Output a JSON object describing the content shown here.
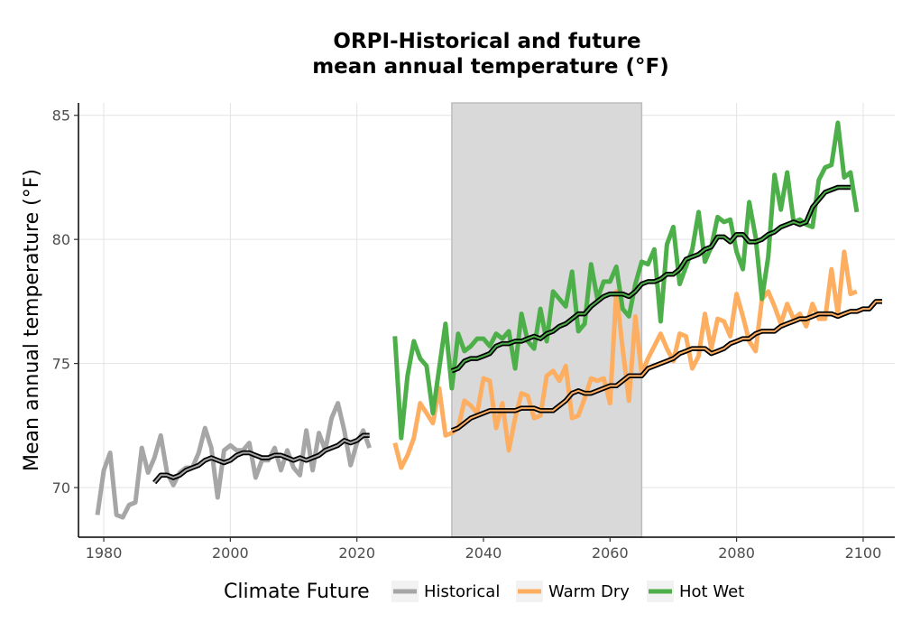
{
  "chart_data": {
    "type": "line",
    "title": [
      "ORPI-Historical and future",
      "mean annual temperature (°F)"
    ],
    "xlabel": "",
    "ylabel": "Mean annual temperature (°F)",
    "xlim": [
      1976,
      2105
    ],
    "ylim": [
      68,
      85.5
    ],
    "xticks": [
      1980,
      2000,
      2020,
      2040,
      2060,
      2080,
      2100
    ],
    "yticks": [
      70,
      75,
      80,
      85
    ],
    "grid": true,
    "shaded_period": [
      2035,
      2065
    ],
    "legend": {
      "title": "Climate Future",
      "position": "bottom"
    },
    "series": [
      {
        "name": "Historical",
        "color": "#a6a6a6",
        "x": [
          1979,
          1980,
          1981,
          1982,
          1983,
          1984,
          1985,
          1986,
          1987,
          1988,
          1989,
          1990,
          1991,
          1992,
          1993,
          1994,
          1995,
          1996,
          1997,
          1998,
          1999,
          2000,
          2001,
          2002,
          2003,
          2004,
          2005,
          2006,
          2007,
          2008,
          2009,
          2010,
          2011,
          2012,
          2013,
          2014,
          2015,
          2016,
          2017,
          2018,
          2019,
          2020,
          2021,
          2022
        ],
        "values": [
          68.9,
          70.7,
          71.4,
          68.9,
          68.8,
          69.3,
          69.4,
          71.6,
          70.6,
          71.2,
          72.1,
          70.6,
          70.1,
          70.6,
          70.8,
          70.8,
          71.4,
          72.4,
          71.6,
          69.6,
          71.5,
          71.7,
          71.5,
          71.5,
          71.8,
          70.4,
          71.1,
          71.1,
          71.6,
          70.7,
          71.5,
          70.8,
          70.5,
          72.3,
          70.7,
          72.2,
          71.5,
          72.8,
          73.4,
          72.3,
          70.9,
          71.8,
          72.3,
          71.6
        ]
      },
      {
        "name": "Warm Dry",
        "color": "#fdae61",
        "x": [
          2026,
          2027,
          2028,
          2029,
          2030,
          2031,
          2032,
          2033,
          2034,
          2035,
          2036,
          2037,
          2038,
          2039,
          2040,
          2041,
          2042,
          2043,
          2044,
          2045,
          2046,
          2047,
          2048,
          2049,
          2050,
          2051,
          2052,
          2053,
          2054,
          2055,
          2056,
          2057,
          2058,
          2059,
          2060,
          2061,
          2062,
          2063,
          2064,
          2065,
          2066,
          2067,
          2068,
          2069,
          2070,
          2071,
          2072,
          2073,
          2074,
          2075,
          2076,
          2077,
          2078,
          2079,
          2080,
          2081,
          2082,
          2083,
          2084,
          2085,
          2086,
          2087,
          2088,
          2089,
          2090,
          2091,
          2092,
          2093,
          2094,
          2095,
          2096,
          2097,
          2098,
          2099
        ],
        "values": [
          71.8,
          70.8,
          71.3,
          72.0,
          73.4,
          73.0,
          72.6,
          74.0,
          72.1,
          72.2,
          72.4,
          73.5,
          73.3,
          73.0,
          74.4,
          74.3,
          72.4,
          73.4,
          71.5,
          72.8,
          73.8,
          73.7,
          72.8,
          72.9,
          74.5,
          74.7,
          74.3,
          74.9,
          72.8,
          72.9,
          73.6,
          74.4,
          74.3,
          74.4,
          73.4,
          77.9,
          75.6,
          73.5,
          76.9,
          74.6,
          75.2,
          75.7,
          76.2,
          75.6,
          75.1,
          76.2,
          76.1,
          74.8,
          75.3,
          77.0,
          75.6,
          76.8,
          76.7,
          76.1,
          77.8,
          76.9,
          75.9,
          75.5,
          77.6,
          77.9,
          77.3,
          76.6,
          77.4,
          76.8,
          77.0,
          76.5,
          77.4,
          76.8,
          76.8,
          78.8,
          77.0,
          79.5,
          77.8,
          77.9
        ],
        "smooth": [
          72.3,
          72.4,
          72.6,
          72.8,
          72.9,
          73.0,
          73.1,
          73.1,
          73.1,
          73.1,
          73.1,
          73.2,
          73.2,
          73.2,
          73.1,
          73.1,
          73.1,
          73.3,
          73.5,
          73.8,
          73.9,
          73.8,
          73.8,
          73.9,
          74.0,
          74.1,
          74.1,
          74.3,
          74.5,
          74.5,
          74.5,
          74.8,
          74.9,
          75.0,
          75.1,
          75.2,
          75.4,
          75.5,
          75.6,
          75.6,
          75.6,
          75.4,
          75.5,
          75.6,
          75.8,
          75.9,
          76.0,
          76.0,
          76.2,
          76.3,
          76.3,
          76.3,
          76.5,
          76.6,
          76.7,
          76.8,
          76.8,
          76.9,
          77.0,
          77.0,
          77.0,
          76.9,
          77.0,
          77.1,
          77.1,
          77.2,
          77.2,
          77.5,
          77.5
        ]
      },
      {
        "name": "Hot Wet",
        "color": "#4daf4a",
        "x": [
          2026,
          2027,
          2028,
          2029,
          2030,
          2031,
          2032,
          2033,
          2034,
          2035,
          2036,
          2037,
          2038,
          2039,
          2040,
          2041,
          2042,
          2043,
          2044,
          2045,
          2046,
          2047,
          2048,
          2049,
          2050,
          2051,
          2052,
          2053,
          2054,
          2055,
          2056,
          2057,
          2058,
          2059,
          2060,
          2061,
          2062,
          2063,
          2064,
          2065,
          2066,
          2067,
          2068,
          2069,
          2070,
          2071,
          2072,
          2073,
          2074,
          2075,
          2076,
          2077,
          2078,
          2079,
          2080,
          2081,
          2082,
          2083,
          2084,
          2085,
          2086,
          2087,
          2088,
          2089,
          2090,
          2091,
          2092,
          2093,
          2094,
          2095,
          2096,
          2097,
          2098,
          2099
        ],
        "values": [
          76.1,
          72.0,
          74.5,
          75.9,
          75.2,
          74.9,
          73.0,
          74.8,
          76.6,
          74.0,
          76.2,
          75.5,
          75.7,
          76.0,
          76.0,
          75.7,
          76.2,
          76.0,
          76.3,
          74.8,
          77.0,
          75.9,
          75.6,
          77.2,
          75.9,
          77.9,
          77.6,
          77.3,
          78.7,
          76.3,
          76.6,
          79.0,
          77.6,
          78.3,
          78.3,
          78.9,
          77.2,
          76.9,
          78.2,
          79.1,
          79.0,
          79.6,
          76.7,
          79.8,
          80.5,
          78.2,
          78.9,
          79.6,
          81.1,
          79.1,
          79.7,
          80.9,
          80.7,
          80.8,
          79.5,
          78.8,
          81.5,
          80.1,
          77.6,
          79.3,
          82.6,
          81.2,
          82.7,
          80.7,
          80.8,
          80.6,
          80.5,
          82.4,
          82.9,
          83.0,
          84.7,
          82.5,
          82.7,
          81.1
        ],
        "smooth": [
          74.7,
          74.8,
          75.1,
          75.2,
          75.2,
          75.3,
          75.4,
          75.7,
          75.8,
          75.8,
          75.9,
          75.9,
          76.0,
          76.1,
          76.0,
          76.2,
          76.3,
          76.5,
          76.6,
          76.8,
          77.0,
          77.0,
          77.3,
          77.5,
          77.7,
          77.8,
          77.8,
          77.8,
          77.7,
          77.9,
          78.2,
          78.3,
          78.3,
          78.4,
          78.6,
          78.6,
          78.8,
          79.2,
          79.3,
          79.4,
          79.6,
          79.7,
          80.1,
          80.1,
          79.9,
          80.2,
          80.2,
          79.9,
          79.9,
          80.0,
          80.2,
          80.3,
          80.5,
          80.6,
          80.7,
          80.6,
          80.7,
          81.3,
          81.6,
          81.9,
          82.0,
          82.1,
          82.1,
          82.1
        ]
      }
    ],
    "smooth_historical": [
      70.2,
      70.5,
      70.5,
      70.4,
      70.5,
      70.7,
      70.8,
      70.9,
      71.1,
      71.2,
      71.1,
      71.0,
      71.1,
      71.3,
      71.4,
      71.4,
      71.3,
      71.2,
      71.2,
      71.3,
      71.3,
      71.2,
      71.1,
      71.2,
      71.1,
      71.2,
      71.3,
      71.5,
      71.6,
      71.7,
      71.9,
      71.8,
      71.9,
      72.1,
      72.1
    ],
    "smooth_historical_start": 1988,
    "smooth_future_start": 2035,
    "smooth_hotwet_start": 2035
  }
}
